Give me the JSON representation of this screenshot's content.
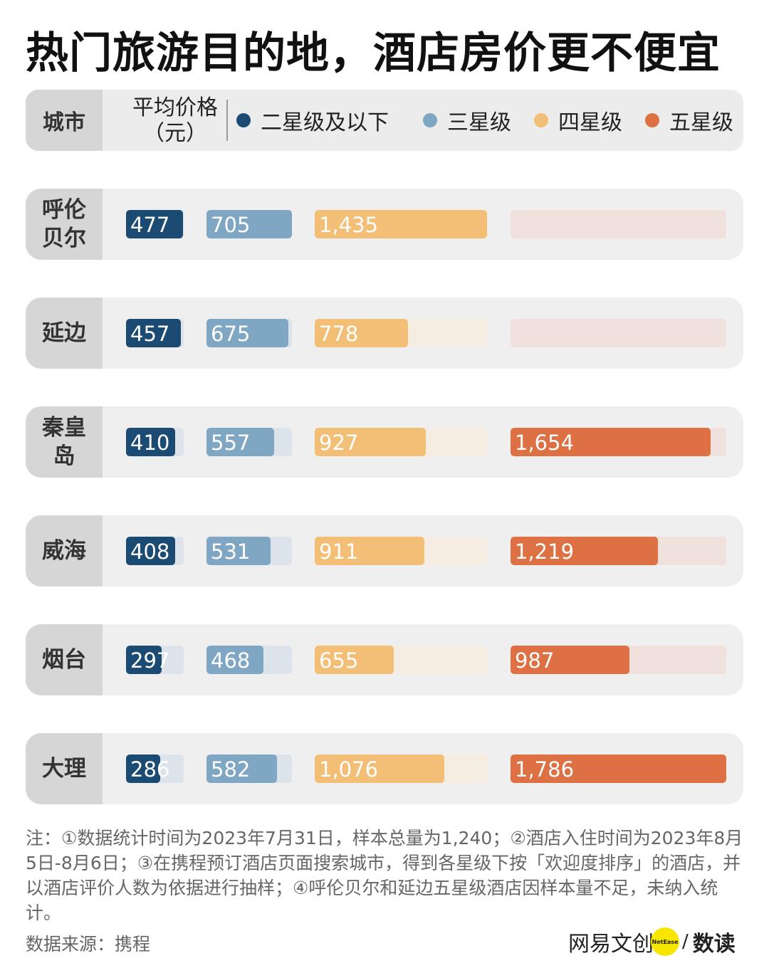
{
  "title": "热门旅游目的地，酒店房价更不便宜",
  "header": {
    "city_label": "城市",
    "avg_label_line1": "平均价格",
    "avg_label_line2": "（元）"
  },
  "colors": {
    "s2": "#1b4b72",
    "s3": "#7fa7c4",
    "s4": "#f3bf76",
    "s5": "#dd7144",
    "t2": "#dde3ea",
    "t3": "#dde3ea",
    "t4": "#f5ece2",
    "t5": "#f1e1dc"
  },
  "chart_data": {
    "type": "bar",
    "categories": [
      "呼伦贝尔",
      "延边",
      "秦皇岛",
      "威海",
      "烟台",
      "大理"
    ],
    "category_lines": [
      [
        "呼伦",
        "贝尔"
      ],
      [
        "延边"
      ],
      [
        "秦皇岛"
      ],
      [
        "威海"
      ],
      [
        "烟台"
      ],
      [
        "大理"
      ]
    ],
    "series": [
      {
        "name": "二星级及以下",
        "values": [
          477,
          457,
          410,
          408,
          297,
          286
        ],
        "labels": [
          "477",
          "457",
          "410",
          "408",
          "297",
          "286"
        ]
      },
      {
        "name": "三星级",
        "values": [
          705,
          675,
          557,
          531,
          468,
          582
        ],
        "labels": [
          "705",
          "675",
          "557",
          "531",
          "468",
          "582"
        ]
      },
      {
        "name": "四星级",
        "values": [
          1435,
          778,
          927,
          911,
          655,
          1076
        ],
        "labels": [
          "1,435",
          "778",
          "927",
          "911",
          "655",
          "1,076"
        ]
      },
      {
        "name": "五星级",
        "values": [
          null,
          null,
          1654,
          1219,
          987,
          1786
        ],
        "labels": [
          "",
          "",
          "1,654",
          "1,219",
          "987",
          "1,786"
        ]
      }
    ],
    "ylabel": "平均价格（元）",
    "legend": "top"
  },
  "note": "注：①数据统计时间为2023年7月31日，样本总量为1,240；②酒店入住时间为2023年8月5日-8月6日；③在携程预订酒店页面搜索城市，得到各星级下按「欢迎度排序」的酒店，并以酒店评价人数为依据进行抽样；④呼伦贝尔和延边五星级酒店因样本量不足，未纳入统计。",
  "source": "数据来源：携程",
  "logo": {
    "brand": "网易文创",
    "badge": "NetEase",
    "slash": "/",
    "sub": "数读"
  }
}
